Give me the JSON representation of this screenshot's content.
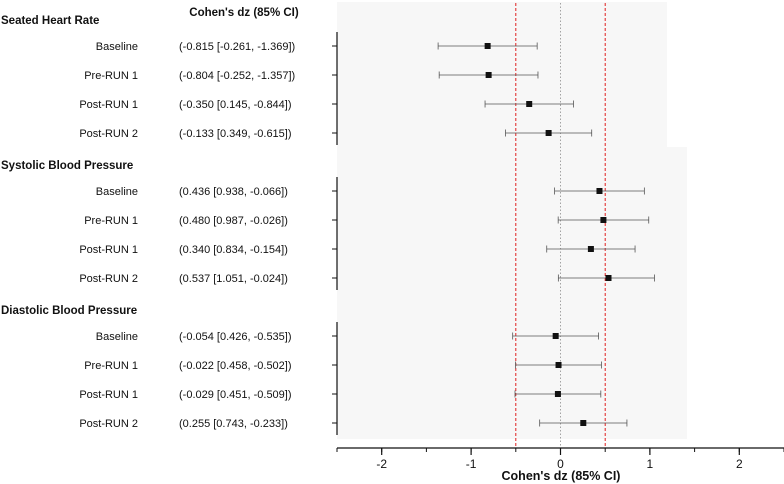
{
  "chart_data": {
    "type": "forest",
    "header": "Cohen's dz (85% CI)",
    "xlabel": "Cohen's dz  (85% CI)",
    "xlim": [
      -2.5,
      2.5
    ],
    "xticks": [
      {
        "value": -2,
        "label": "-2"
      },
      {
        "value": -1,
        "label": "-1"
      },
      {
        "value": 0,
        "label": "0"
      },
      {
        "value": 1,
        "label": "1"
      },
      {
        "value": 2,
        "label": "2"
      }
    ],
    "reference_lines": [
      {
        "value": 0,
        "color": "#9a9a9a",
        "style": "dotted"
      },
      {
        "value": -0.5,
        "color": "#e02020",
        "style": "dashed"
      },
      {
        "value": 0.5,
        "color": "#e02020",
        "style": "dashed"
      }
    ],
    "groups": [
      {
        "name": "Seated Heart Rate",
        "rows": [
          {
            "label": "Baseline",
            "text": "(-0.815 [-0.261, -1.369])",
            "estimate": -0.815,
            "ci_high": -0.261,
            "ci_low": -1.369
          },
          {
            "label": "Pre-RUN 1",
            "text": "(-0.804 [-0.252, -1.357])",
            "estimate": -0.804,
            "ci_high": -0.252,
            "ci_low": -1.357
          },
          {
            "label": "Post-RUN 1",
            "text": "(-0.350 [0.145, -0.844])",
            "estimate": -0.35,
            "ci_high": 0.145,
            "ci_low": -0.844
          },
          {
            "label": "Post-RUN 2",
            "text": "(-0.133 [0.349, -0.615])",
            "estimate": -0.133,
            "ci_high": 0.349,
            "ci_low": -0.615
          }
        ]
      },
      {
        "name": "Systolic Blood Pressure",
        "rows": [
          {
            "label": "Baseline",
            "text": "(0.436 [0.938, -0.066])",
            "estimate": 0.436,
            "ci_high": 0.938,
            "ci_low": -0.066
          },
          {
            "label": "Pre-RUN 1",
            "text": "(0.480 [0.987, -0.026])",
            "estimate": 0.48,
            "ci_high": 0.987,
            "ci_low": -0.026
          },
          {
            "label": "Post-RUN 1",
            "text": "(0.340 [0.834, -0.154])",
            "estimate": 0.34,
            "ci_high": 0.834,
            "ci_low": -0.154
          },
          {
            "label": "Post-RUN 2",
            "text": "(0.537 [1.051, -0.024])",
            "estimate": 0.537,
            "ci_high": 1.051,
            "ci_low": -0.024
          }
        ]
      },
      {
        "name": "Diastolic Blood Pressure",
        "rows": [
          {
            "label": "Baseline",
            "text": "(-0.054 [0.426, -0.535])",
            "estimate": -0.054,
            "ci_high": 0.426,
            "ci_low": -0.535
          },
          {
            "label": "Pre-RUN 1",
            "text": "(-0.022 [0.458, -0.502])",
            "estimate": -0.022,
            "ci_high": 0.458,
            "ci_low": -0.502
          },
          {
            "label": "Post-RUN 1",
            "text": "(-0.029 [0.451, -0.509])",
            "estimate": -0.029,
            "ci_high": 0.451,
            "ci_low": -0.509
          },
          {
            "label": "Post-RUN 2",
            "text": "(0.255 [0.743, -0.233])",
            "estimate": 0.255,
            "ci_high": 0.743,
            "ci_low": -0.233
          }
        ]
      }
    ],
    "colors": {
      "marker": "#111111",
      "whisker": "#555555",
      "axis": "#111111",
      "reference_red": "#e02020",
      "zero_line": "#9a9a9a"
    }
  }
}
